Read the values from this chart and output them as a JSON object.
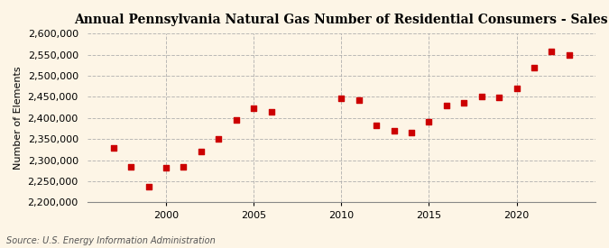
{
  "title": "Annual Pennsylvania Natural Gas Number of Residential Consumers - Sales",
  "ylabel": "Number of Elements",
  "source": "Source: U.S. Energy Information Administration",
  "background_color": "#fdf5e6",
  "plot_background_color": "#fdf5e6",
  "marker_color": "#cc0000",
  "grid_color": "#aaaaaa",
  "years": [
    1997,
    1998,
    1999,
    2000,
    2001,
    2002,
    2003,
    2004,
    2005,
    2006,
    2010,
    2011,
    2012,
    2013,
    2014,
    2015,
    2016,
    2017,
    2018,
    2019,
    2020,
    2021,
    2022,
    2023
  ],
  "values": [
    2330000,
    2285000,
    2237000,
    2283000,
    2285000,
    2320000,
    2350000,
    2395000,
    2423000,
    2415000,
    2447000,
    2443000,
    2382000,
    2370000,
    2365000,
    2390000,
    2430000,
    2435000,
    2450000,
    2448000,
    2470000,
    2520000,
    2558000,
    2550000
  ],
  "ylim": [
    2200000,
    2600000
  ],
  "xlim": [
    1995.5,
    2024.5
  ],
  "yticks": [
    2200000,
    2250000,
    2300000,
    2350000,
    2400000,
    2450000,
    2500000,
    2550000,
    2600000
  ],
  "xticks": [
    2000,
    2005,
    2010,
    2015,
    2020
  ]
}
